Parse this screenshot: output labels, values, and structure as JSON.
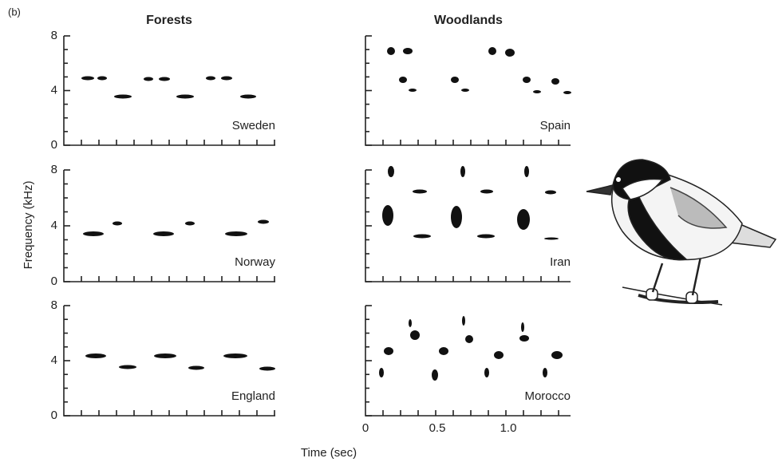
{
  "figure": {
    "panel_label": "(b)",
    "columns": [
      "Forests",
      "Woodlands"
    ],
    "y_axis_label": "Frequency (kHz)",
    "x_axis_label": "Time (sec)",
    "y_tick_labels": [
      "8",
      "4",
      "0"
    ],
    "x_tick_labels": [
      "0",
      "0.5",
      "1.0"
    ],
    "panels": [
      "Sweden",
      "Spain",
      "Norway",
      "Iran",
      "England",
      "Morocco"
    ]
  }
}
